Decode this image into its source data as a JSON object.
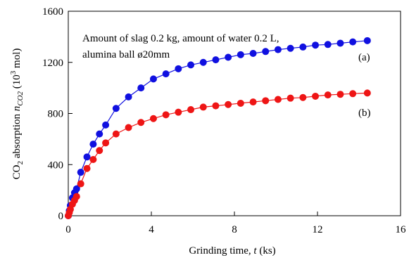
{
  "chart_data": {
    "type": "scatter",
    "title": "",
    "xlabel": "Grinding time, t (ks)",
    "ylabel": "CO2 absorption nCO2 (10^3 mol)",
    "xlim": [
      0,
      16
    ],
    "ylim": [
      0,
      1600
    ],
    "xticks": [
      0,
      4,
      8,
      12,
      16
    ],
    "yticks": [
      0,
      400,
      800,
      1200,
      1600
    ],
    "grid": false,
    "annotation": [
      "Amount of slag 0.2 kg, amount of water 0.2 L,",
      "alumina ball ø20mm"
    ],
    "series": [
      {
        "label": "(a)",
        "color": "#1010e0",
        "fit_line": true,
        "x": [
          0,
          0.05,
          0.1,
          0.2,
          0.3,
          0.4,
          0.6,
          0.9,
          1.2,
          1.5,
          1.8,
          2.3,
          2.9,
          3.5,
          4.1,
          4.7,
          5.3,
          5.9,
          6.5,
          7.1,
          7.7,
          8.3,
          8.9,
          9.5,
          10.1,
          10.7,
          11.3,
          11.9,
          12.5,
          13.1,
          13.7,
          14.4
        ],
        "y": [
          0,
          40,
          80,
          140,
          180,
          210,
          340,
          460,
          560,
          640,
          710,
          840,
          930,
          1000,
          1070,
          1110,
          1150,
          1180,
          1200,
          1220,
          1240,
          1260,
          1270,
          1285,
          1300,
          1310,
          1320,
          1335,
          1340,
          1350,
          1360,
          1370
        ]
      },
      {
        "label": "(b)",
        "color": "#ee1515",
        "fit_line": true,
        "x": [
          0,
          0.05,
          0.1,
          0.2,
          0.3,
          0.4,
          0.6,
          0.9,
          1.2,
          1.5,
          1.8,
          2.3,
          2.9,
          3.5,
          4.1,
          4.7,
          5.3,
          5.9,
          6.5,
          7.1,
          7.7,
          8.3,
          8.9,
          9.5,
          10.1,
          10.7,
          11.3,
          11.9,
          12.5,
          13.1,
          13.7,
          14.4
        ],
        "y": [
          0,
          25,
          50,
          90,
          120,
          150,
          250,
          370,
          440,
          510,
          570,
          640,
          690,
          730,
          760,
          790,
          810,
          830,
          850,
          860,
          870,
          880,
          890,
          900,
          910,
          920,
          925,
          935,
          945,
          950,
          955,
          960
        ]
      }
    ]
  }
}
